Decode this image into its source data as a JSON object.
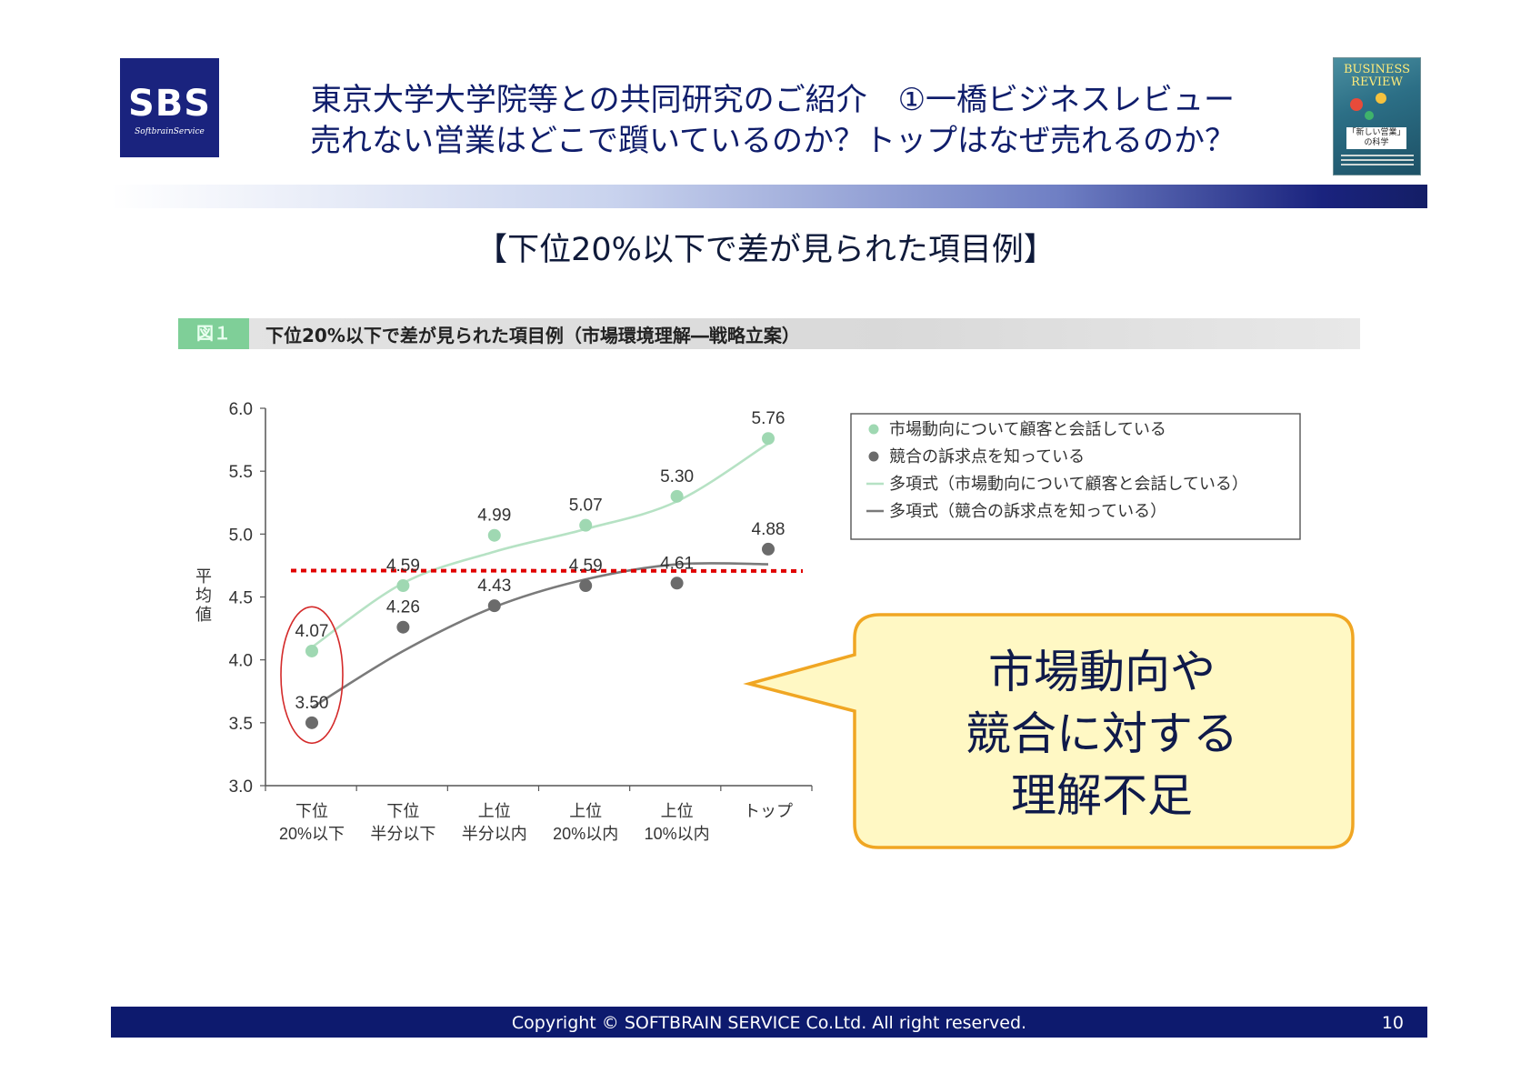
{
  "logo": {
    "text": "SBS",
    "subtext": "SoftbrainService"
  },
  "header": {
    "title_line1": "東京大学大学院等との共同研究のご紹介　①一橋ビジネスレビュー",
    "title_line2": "売れない営業はどこで躓いているのか？トップはなぜ売れるのか？"
  },
  "cover": {
    "title": "BUSINESS REVIEW",
    "caption": "「新しい営業」の科学"
  },
  "subtitle": "【下位20%以下で差が見られた項目例】",
  "figure": {
    "tag": "図１",
    "caption": "下位20%以下で差が見られた項目例（市場環境理解―戦略立案）"
  },
  "callout": {
    "lines": [
      "市場動向や",
      "競合に対する",
      "理解不足"
    ]
  },
  "footer": {
    "copyright": "Copyright © SOFTBRAIN SERVICE Co.Ltd. All right reserved.",
    "page": "10"
  },
  "colors": {
    "series_green": "#9fd8b2",
    "series_gray": "#6b6b6b",
    "threshold": "#e00000",
    "callout_fill": "#fff8c4",
    "callout_border": "#f0a623",
    "navy": "#1a237e"
  },
  "chart_data": {
    "type": "scatter",
    "ylabel": "平均値",
    "ylim": [
      3.0,
      6.0
    ],
    "yticks": [
      "3.0",
      "3.5",
      "4.0",
      "4.5",
      "5.0",
      "5.5",
      "6.0"
    ],
    "categories": [
      [
        "下位",
        "20%以下"
      ],
      [
        "下位",
        "半分以下"
      ],
      [
        "上位",
        "半分以内"
      ],
      [
        "上位",
        "20%以内"
      ],
      [
        "上位",
        "10%以内"
      ],
      [
        "トップ",
        ""
      ]
    ],
    "series": [
      {
        "name": "市場動向について顧客と会話している",
        "color": "#9fd8b2",
        "values": [
          4.07,
          4.59,
          4.99,
          5.07,
          5.3,
          5.76
        ],
        "labels": [
          "4.07",
          "4.59",
          "4.99",
          "5.07",
          "5.30",
          "5.76"
        ]
      },
      {
        "name": "競合の訴求点を知っている",
        "color": "#6b6b6b",
        "values": [
          3.5,
          4.26,
          4.43,
          4.59,
          4.61,
          4.88
        ],
        "labels": [
          "3.50",
          "4.26",
          "4.43",
          "4.59",
          "4.61",
          "4.88"
        ]
      }
    ],
    "trendlines": [
      {
        "name": "多項式（市場動向について顧客と会話している）",
        "color": "#b6e2c4",
        "values": [
          4.1,
          4.61,
          4.86,
          5.04,
          5.26,
          5.72
        ]
      },
      {
        "name": "多項式（競合の訴求点を知っている）",
        "color": "#7a7a7a",
        "values": [
          3.62,
          4.07,
          4.42,
          4.64,
          4.76,
          4.76
        ]
      }
    ],
    "threshold": 4.71,
    "legend_position": "top-right",
    "grid": false
  }
}
